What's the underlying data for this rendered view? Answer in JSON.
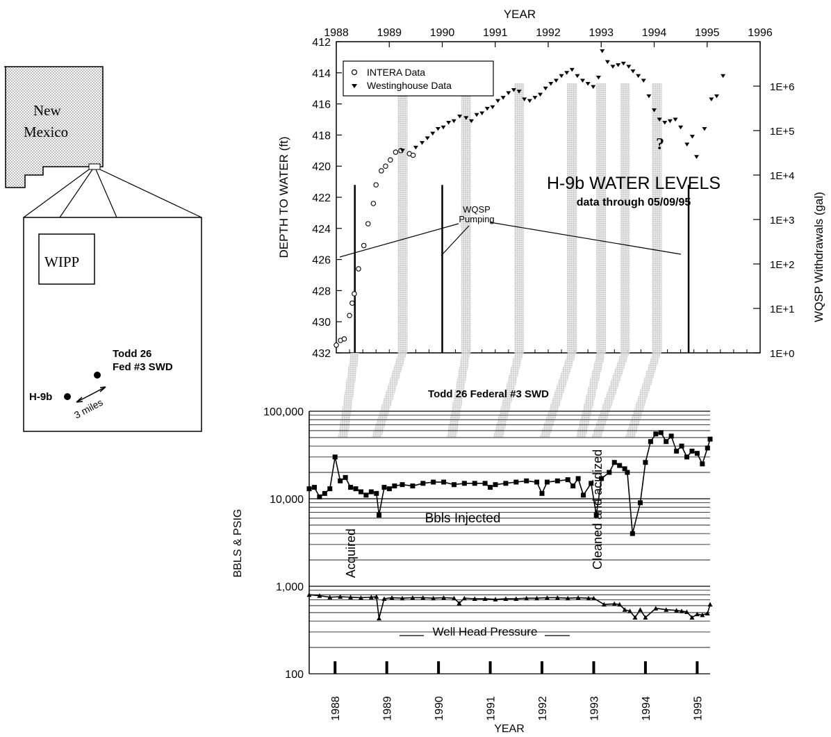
{
  "map": {
    "state_label_line1": "New",
    "state_label_line2": "Mexico",
    "wipp_label": "WIPP",
    "well_h9b_label": "H-9b",
    "swd_label_line1": "Todd 26",
    "swd_label_line2": "Fed #3 SWD",
    "distance_label": "3 miles"
  },
  "top_chart": {
    "x_axis_title": "YEAR",
    "y_axis_title": "DEPTH TO WATER (ft)",
    "y2_axis_title": "WQSP Withdrawals (gal)",
    "title_line1": "H-9b WATER LEVELS",
    "title_line2": "data through 05/09/95",
    "pumping_label_line1": "WQSP",
    "pumping_label_line2": "Pumping",
    "question_mark": "?",
    "legend": [
      "INTERA Data",
      "Westinghouse Data"
    ],
    "x_ticks": [
      "1988",
      "1989",
      "1990",
      "1991",
      "1992",
      "1993",
      "1994",
      "1995",
      "1996"
    ],
    "y_ticks": [
      "412",
      "414",
      "416",
      "418",
      "420",
      "422",
      "424",
      "426",
      "428",
      "430",
      "432"
    ],
    "y2_ticks": [
      "1E+6",
      "1E+5",
      "1E+4",
      "1E+3",
      "1E+2",
      "1E+1",
      "1E+0"
    ]
  },
  "bottom_chart": {
    "title": "Todd 26 Federal #3 SWD",
    "x_axis_title": "YEAR",
    "y_axis_title": "BBLS & PSIG",
    "y_ticks": [
      "100,000",
      "10,000",
      "1,000",
      "100"
    ],
    "x_ticks": [
      "1988",
      "1989",
      "1990",
      "1991",
      "1992",
      "1993",
      "1994",
      "1995"
    ],
    "bbls_label": "Bbls Injected",
    "pressure_label": "Well Head Pressure",
    "acquired_label": "Acquired",
    "cleaned_label": "Cleaned and acidized"
  },
  "chart_data": [
    {
      "type": "scatter",
      "title": "H-9b WATER LEVELS",
      "subtitle": "data through 05/09/95",
      "xlabel": "YEAR",
      "ylabel": "DEPTH TO WATER (ft)",
      "y2label": "WQSP Withdrawals (gal)",
      "xlim": [
        1988,
        1996
      ],
      "ylim": [
        432,
        412
      ],
      "y_inverted": true,
      "y2_scale": "log",
      "y2lim": [
        1,
        10000000
      ],
      "legend_position": "top-left",
      "series": [
        {
          "name": "INTERA Data",
          "marker": "circle",
          "x": [
            1988.0,
            1988.08,
            1988.15,
            1988.25,
            1988.3,
            1988.34,
            1988.42,
            1988.52,
            1988.6,
            1988.7,
            1988.75,
            1988.85,
            1988.93,
            1989.02,
            1989.12,
            1989.22,
            1989.38,
            1989.45
          ],
          "y": [
            431.5,
            431.2,
            431.1,
            429.6,
            428.8,
            428.2,
            426.6,
            425.1,
            423.7,
            422.4,
            421.2,
            420.3,
            420.0,
            419.6,
            419.1,
            419.0,
            419.2,
            419.3
          ]
        },
        {
          "name": "Westinghouse Data",
          "marker": "triangle-down",
          "x": [
            1989.25,
            1989.5,
            1989.62,
            1989.72,
            1989.82,
            1989.92,
            1990.02,
            1990.12,
            1990.22,
            1990.33,
            1990.45,
            1990.55,
            1990.65,
            1990.75,
            1990.85,
            1990.95,
            1991.05,
            1991.15,
            1991.25,
            1991.35,
            1991.45,
            1991.55,
            1991.65,
            1991.75,
            1991.85,
            1991.95,
            1992.05,
            1992.15,
            1992.25,
            1992.35,
            1992.45,
            1992.55,
            1992.65,
            1992.75,
            1992.85,
            1992.95,
            1993.02,
            1993.12,
            1993.22,
            1993.32,
            1993.42,
            1993.52,
            1993.6,
            1993.7,
            1993.8,
            1993.9,
            1994.0,
            1994.1,
            1994.2,
            1994.3,
            1994.4,
            1994.5,
            1994.62,
            1994.72,
            1994.8,
            1994.95,
            1995.08,
            1995.18,
            1995.3
          ],
          "y": [
            419.0,
            418.8,
            418.5,
            418.2,
            417.9,
            417.6,
            417.5,
            417.2,
            417.1,
            416.8,
            416.9,
            417.1,
            416.7,
            416.6,
            416.3,
            416.2,
            415.8,
            415.6,
            415.3,
            415.1,
            415.2,
            415.7,
            415.8,
            415.6,
            415.4,
            415.0,
            414.7,
            414.5,
            414.2,
            414.0,
            413.8,
            414.2,
            414.5,
            414.7,
            414.9,
            414.3,
            412.6,
            413.3,
            413.6,
            413.5,
            413.4,
            413.6,
            413.9,
            414.2,
            414.5,
            415.5,
            416.4,
            417.0,
            417.2,
            417.1,
            417.0,
            417.5,
            418.6,
            418.1,
            419.4,
            417.6,
            415.7,
            415.5,
            414.2
          ]
        },
        {
          "name": "WQSP Withdrawals (gal)",
          "type": "bar",
          "x": [
            1988.35,
            1990.0,
            1994.65
          ],
          "values": [
            6000,
            6000,
            6000
          ]
        }
      ]
    },
    {
      "type": "line",
      "title": "Todd 26 Federal #3 SWD",
      "xlabel": "YEAR",
      "ylabel": "BBLS & PSIG",
      "y_scale": "log",
      "ylim": [
        100,
        100000
      ],
      "xlim": [
        1987.5,
        1995.25
      ],
      "series": [
        {
          "name": "Bbls Injected",
          "marker": "square",
          "x": [
            1987.5,
            1987.6,
            1987.7,
            1987.8,
            1987.9,
            1988.0,
            1988.1,
            1988.2,
            1988.3,
            1988.4,
            1988.5,
            1988.6,
            1988.7,
            1988.8,
            1988.85,
            1988.95,
            1989.05,
            1989.15,
            1989.3,
            1989.5,
            1989.7,
            1989.9,
            1990.1,
            1990.3,
            1990.5,
            1990.7,
            1990.9,
            1991.0,
            1991.1,
            1991.3,
            1991.5,
            1991.7,
            1991.9,
            1992.0,
            1992.1,
            1992.3,
            1992.5,
            1992.6,
            1992.7,
            1992.8,
            1992.95,
            1993.05,
            1993.15,
            1993.3,
            1993.4,
            1993.5,
            1993.6,
            1993.65,
            1993.75,
            1993.9,
            1994.0,
            1994.1,
            1994.2,
            1994.3,
            1994.4,
            1994.5,
            1994.6,
            1994.7,
            1994.8,
            1994.9,
            1995.0,
            1995.1,
            1995.2,
            1995.25
          ],
          "y": [
            13000,
            13500,
            10500,
            11500,
            13000,
            30000,
            16000,
            17500,
            13500,
            13000,
            12000,
            11000,
            12000,
            11500,
            6500,
            13500,
            13000,
            14000,
            14500,
            14000,
            15000,
            15500,
            15500,
            14500,
            15000,
            15000,
            15000,
            13500,
            14500,
            15000,
            15500,
            16000,
            15500,
            11500,
            15500,
            16000,
            16500,
            14000,
            17000,
            11000,
            15000,
            6500,
            17000,
            20000,
            26000,
            24000,
            22000,
            20000,
            4000,
            9000,
            26000,
            45000,
            55000,
            57000,
            45000,
            52000,
            35000,
            40000,
            30000,
            35000,
            33000,
            25000,
            38000,
            48000
          ]
        },
        {
          "name": "Well Head Pressure",
          "marker": "triangle",
          "x": [
            1987.5,
            1987.7,
            1987.9,
            1988.1,
            1988.3,
            1988.5,
            1988.7,
            1988.8,
            1988.85,
            1988.95,
            1989.1,
            1989.3,
            1989.5,
            1989.7,
            1989.9,
            1990.1,
            1990.3,
            1990.4,
            1990.5,
            1990.7,
            1990.9,
            1991.1,
            1991.3,
            1991.5,
            1991.7,
            1991.9,
            1992.1,
            1992.3,
            1992.5,
            1992.7,
            1992.9,
            1993.0,
            1993.2,
            1993.4,
            1993.5,
            1993.6,
            1993.7,
            1993.8,
            1993.9,
            1994.0,
            1994.2,
            1994.4,
            1994.6,
            1994.7,
            1994.8,
            1994.9,
            1995.0,
            1995.1,
            1995.2,
            1995.25
          ],
          "y": [
            800,
            780,
            750,
            760,
            750,
            740,
            750,
            760,
            430,
            720,
            740,
            730,
            740,
            740,
            730,
            740,
            730,
            640,
            730,
            720,
            720,
            710,
            720,
            720,
            730,
            730,
            740,
            740,
            730,
            740,
            730,
            730,
            620,
            630,
            620,
            540,
            520,
            440,
            540,
            440,
            560,
            540,
            530,
            520,
            510,
            440,
            480,
            470,
            490,
            620
          ]
        }
      ]
    }
  ]
}
